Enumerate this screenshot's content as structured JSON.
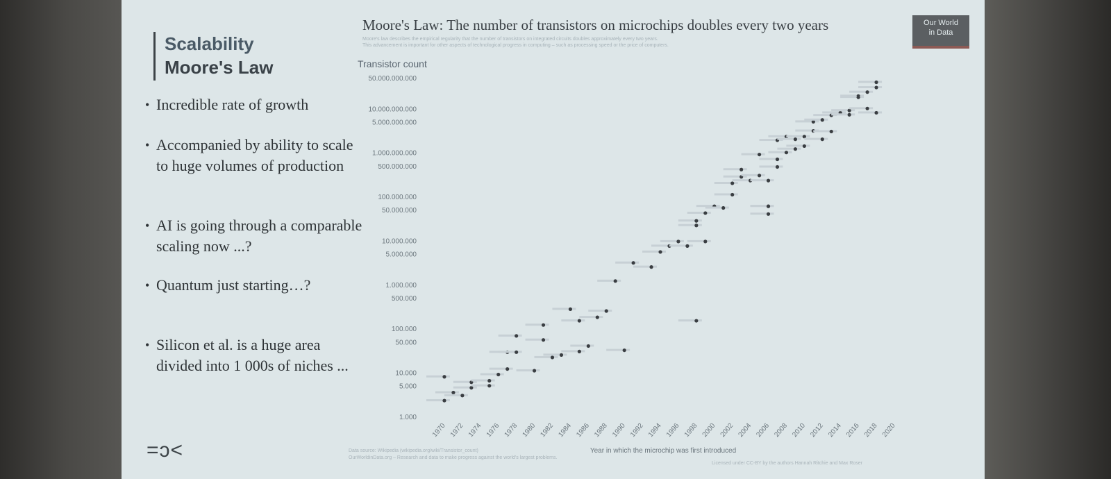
{
  "slide": {
    "title": "Scalability",
    "subtitle": "Moore's Law",
    "bullets": [
      "Incredible rate of growth",
      "Accompanied by ability to scale to huge volumes of production",
      "AI is going through a comparable scaling now ...?",
      "Quantum just starting…?",
      "Silicon et al. is a huge area divided into 1 000s of niches ..."
    ],
    "logo": "=ɔ<"
  },
  "chart": {
    "title": "Moore's Law: The number of transistors on microchips doubles every two years",
    "subtitle_line1": "Moore's law describes the empirical regularity that the number of transistors on integrated circuits doubles approximately every two years.",
    "subtitle_line2": "This advancement is important for other aspects of technological progress in computing – such as processing speed or the price of computers.",
    "badge_line1": "Our World",
    "badge_line2": "in Data",
    "y_title": "Transistor count",
    "x_title": "Year in which the microchip was first introduced",
    "source_line1": "Data source: Wikipedia (wikipedia.org/wiki/Transistor_count)",
    "source_line2": "OurWorldinData.org – Research and data to make progress against the world's largest problems.",
    "license": "Licensed under CC-BY by the authors Hannah Ritchie and Max Roser",
    "colors": {
      "dot": "#3a3e42",
      "label": "#c7d0d5",
      "axis_text": "#6b767d"
    }
  },
  "chart_data": {
    "type": "scatter",
    "y_scale": "log",
    "ylim": [
      1000,
      50000000000
    ],
    "xlim": [
      1970,
      2020
    ],
    "y_ticks": [
      "1.000",
      "5.000",
      "10.000",
      "50.000",
      "100.000",
      "500.000",
      "1.000.000",
      "5.000.000",
      "10.000.000",
      "50.000.000",
      "100.000.000",
      "500.000.000",
      "1.000.000.000",
      "5.000.000.000",
      "10.000.000.000",
      "50.000.000.000"
    ],
    "y_tick_values": [
      1000,
      5000,
      10000,
      50000,
      100000,
      500000,
      1000000,
      5000000,
      10000000,
      50000000,
      100000000,
      500000000,
      1000000000,
      5000000000,
      10000000000,
      50000000000
    ],
    "x_ticks": [
      "1970",
      "1972",
      "1974",
      "1976",
      "1978",
      "1980",
      "1982",
      "1984",
      "1986",
      "1988",
      "1990",
      "1992",
      "1994",
      "1996",
      "1998",
      "2000",
      "2002",
      "2004",
      "2006",
      "2008",
      "2010",
      "2012",
      "2014",
      "2016",
      "2018",
      "2020"
    ],
    "x_tick_values": [
      1970,
      1972,
      1974,
      1976,
      1978,
      1980,
      1982,
      1984,
      1986,
      1988,
      1990,
      1992,
      1994,
      1996,
      1998,
      2000,
      2002,
      2004,
      2006,
      2008,
      2010,
      2012,
      2014,
      2016,
      2018,
      2020
    ],
    "points": [
      [
        1971,
        2300
      ],
      [
        1972,
        3500
      ],
      [
        1974,
        4500
      ],
      [
        1974,
        6000
      ],
      [
        1976,
        6500
      ],
      [
        1976,
        5000
      ],
      [
        1971,
        8000
      ],
      [
        1973,
        3000
      ],
      [
        1977,
        9000
      ],
      [
        1978,
        12000
      ],
      [
        1978,
        29000
      ],
      [
        1979,
        29000
      ],
      [
        1979,
        68000
      ],
      [
        1981,
        11000
      ],
      [
        1982,
        55000
      ],
      [
        1982,
        120000
      ],
      [
        1983,
        22000
      ],
      [
        1984,
        25000
      ],
      [
        1985,
        275000
      ],
      [
        1986,
        150000
      ],
      [
        1986,
        30000
      ],
      [
        1987,
        40000
      ],
      [
        1988,
        180000
      ],
      [
        1989,
        250000
      ],
      [
        1990,
        1200000
      ],
      [
        1991,
        32000
      ],
      [
        1992,
        3100000
      ],
      [
        1994,
        2500000
      ],
      [
        1995,
        5500000
      ],
      [
        1996,
        7500000
      ],
      [
        1997,
        9500000
      ],
      [
        1998,
        7500000
      ],
      [
        1999,
        22000000
      ],
      [
        1999,
        28000000
      ],
      [
        2000,
        42000000
      ],
      [
        2000,
        9500000
      ],
      [
        2001,
        60000000
      ],
      [
        2002,
        55000000
      ],
      [
        2003,
        110000000
      ],
      [
        2003,
        200000000
      ],
      [
        2004,
        280000000
      ],
      [
        2004,
        410000000
      ],
      [
        2005,
        230000000
      ],
      [
        2006,
        900000000
      ],
      [
        2006,
        300000000
      ],
      [
        2007,
        230000000
      ],
      [
        2007,
        60000000
      ],
      [
        2008,
        700000000
      ],
      [
        2008,
        470000000
      ],
      [
        2008,
        1900000000
      ],
      [
        2009,
        1000000000
      ],
      [
        2009,
        2300000000
      ],
      [
        2010,
        1200000000
      ],
      [
        2010,
        2000000000
      ],
      [
        2011,
        2300000000
      ],
      [
        2011,
        1400000000
      ],
      [
        2012,
        3100000000
      ],
      [
        2012,
        5000000000
      ],
      [
        2013,
        2000000000
      ],
      [
        2013,
        5500000000
      ],
      [
        2014,
        3000000000
      ],
      [
        2014,
        7000000000
      ],
      [
        2015,
        8000000000
      ],
      [
        2016,
        7200000000
      ],
      [
        2016,
        9000000000
      ],
      [
        2017,
        19200000000
      ],
      [
        2017,
        18000000000
      ],
      [
        2018,
        23600000000
      ],
      [
        2018,
        10000000000
      ],
      [
        2019,
        30000000000
      ],
      [
        2019,
        39500000000
      ],
      [
        2019,
        8000000000
      ],
      [
        1999,
        150000
      ],
      [
        2007,
        60000000
      ],
      [
        2007,
        40000000
      ]
    ]
  }
}
